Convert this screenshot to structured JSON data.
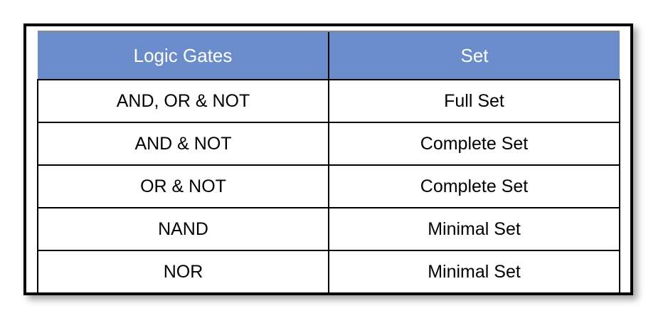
{
  "chart_data": {
    "type": "table",
    "columns": [
      "Logic Gates",
      "Set"
    ],
    "rows": [
      [
        "AND, OR & NOT",
        "Full Set"
      ],
      [
        "AND & NOT",
        "Complete Set"
      ],
      [
        "OR & NOT",
        "Complete Set"
      ],
      [
        "NAND",
        "Minimal Set"
      ],
      [
        "NOR",
        "Minimal Set"
      ]
    ],
    "legend": "none",
    "grid": "on"
  },
  "colors": {
    "header_bg": "#6A8CCB",
    "header_text": "#FFFFFF",
    "header_top_border": "#8B8B82",
    "body_text": "#000000",
    "grid_border": "#000000",
    "frame_border": "#000000"
  }
}
